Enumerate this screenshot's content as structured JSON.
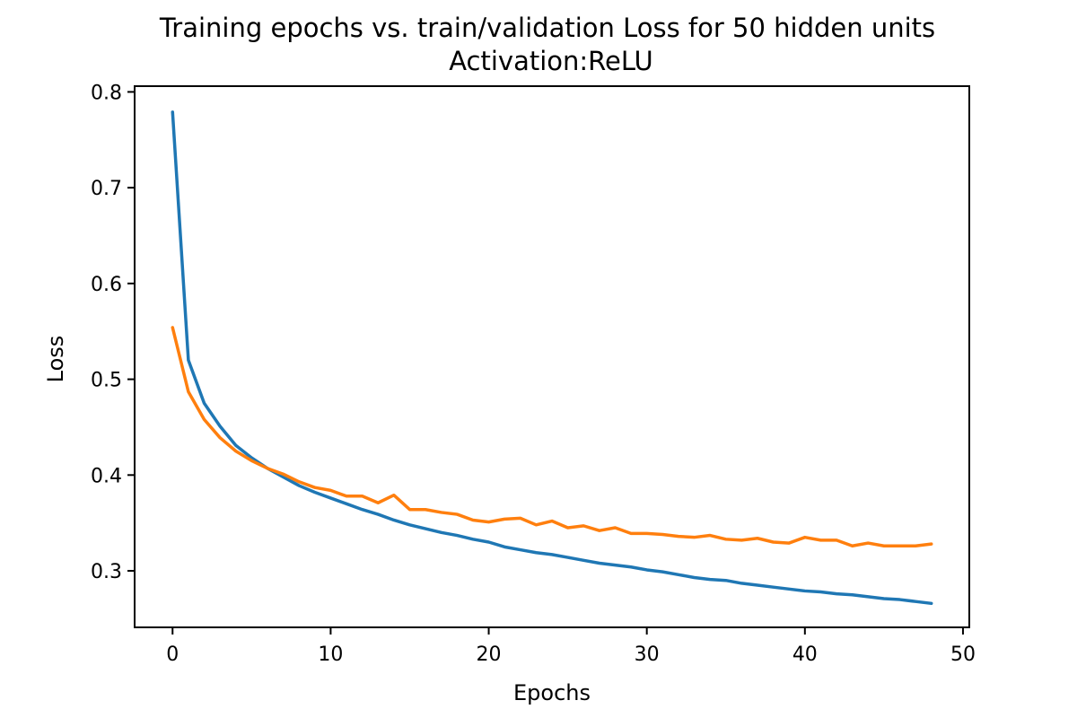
{
  "chart_data": {
    "type": "line",
    "title": "Training epochs vs. train/validation Loss for 50 hidden units",
    "subtitle": "Activation:ReLU",
    "xlabel": "Epochs",
    "ylabel": "Loss",
    "xlim": [
      -2.4,
      50.4
    ],
    "ylim": [
      0.241,
      0.806
    ],
    "xticks": [
      0,
      10,
      20,
      30,
      40,
      50
    ],
    "yticks": [
      0.3,
      0.4,
      0.5,
      0.6,
      0.7,
      0.8
    ],
    "xtick_labels": [
      "0",
      "10",
      "20",
      "30",
      "40",
      "50"
    ],
    "ytick_labels": [
      "0.3",
      "0.4",
      "0.5",
      "0.6",
      "0.7",
      "0.8"
    ],
    "grid": false,
    "legend": false,
    "x": [
      0,
      1,
      2,
      3,
      4,
      5,
      6,
      7,
      8,
      9,
      10,
      11,
      12,
      13,
      14,
      15,
      16,
      17,
      18,
      19,
      20,
      21,
      22,
      23,
      24,
      25,
      26,
      27,
      28,
      29,
      30,
      31,
      32,
      33,
      34,
      35,
      36,
      37,
      38,
      39,
      40,
      41,
      42,
      43,
      44,
      45,
      46,
      47,
      48
    ],
    "series": [
      {
        "color": "#1f77b4",
        "values": [
          0.779,
          0.52,
          0.475,
          0.451,
          0.431,
          0.418,
          0.407,
          0.398,
          0.389,
          0.382,
          0.376,
          0.37,
          0.364,
          0.359,
          0.353,
          0.348,
          0.344,
          0.34,
          0.337,
          0.333,
          0.33,
          0.325,
          0.322,
          0.319,
          0.317,
          0.314,
          0.311,
          0.308,
          0.306,
          0.304,
          0.301,
          0.299,
          0.296,
          0.293,
          0.291,
          0.29,
          0.287,
          0.285,
          0.283,
          0.281,
          0.279,
          0.278,
          0.276,
          0.275,
          0.273,
          0.271,
          0.27,
          0.268,
          0.266
        ]
      },
      {
        "color": "#ff7f0e",
        "values": [
          0.554,
          0.487,
          0.458,
          0.439,
          0.425,
          0.415,
          0.407,
          0.401,
          0.393,
          0.387,
          0.384,
          0.378,
          0.378,
          0.371,
          0.379,
          0.364,
          0.364,
          0.361,
          0.359,
          0.353,
          0.351,
          0.354,
          0.355,
          0.348,
          0.352,
          0.345,
          0.347,
          0.342,
          0.345,
          0.339,
          0.339,
          0.338,
          0.336,
          0.335,
          0.337,
          0.333,
          0.332,
          0.334,
          0.33,
          0.329,
          0.335,
          0.332,
          0.332,
          0.326,
          0.329,
          0.326,
          0.326,
          0.326,
          0.328
        ]
      }
    ]
  }
}
